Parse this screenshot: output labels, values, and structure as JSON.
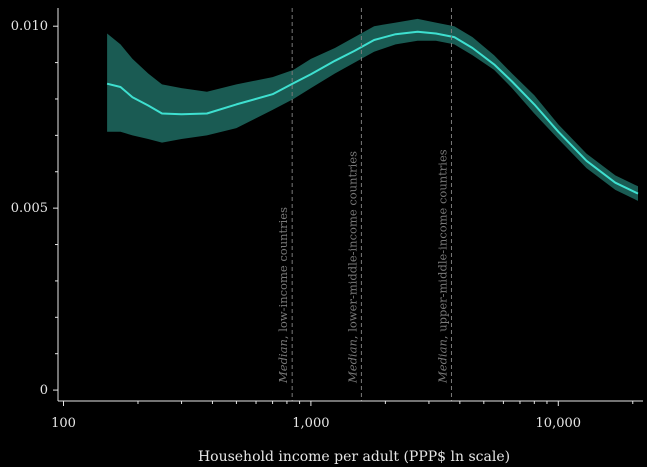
{
  "chart_data": {
    "type": "line",
    "xlabel": "Household income per adult (PPP$ ln scale)",
    "ylabel": "",
    "x_scale": "log",
    "xlim": [
      95,
      22000
    ],
    "ylim": [
      -0.0003,
      0.0105
    ],
    "xticks": [
      {
        "value": 100,
        "label": "100"
      },
      {
        "value": 1000,
        "label": "1,000"
      },
      {
        "value": 10000,
        "label": "10,000"
      }
    ],
    "yticks": [
      {
        "value": 0,
        "label": "0"
      },
      {
        "value": 0.005,
        "label": "0.005"
      },
      {
        "value": 0.01,
        "label": "0.010"
      }
    ],
    "grid": false,
    "colors": {
      "line": "#3ee0d0",
      "band": "#1f6b62",
      "reference": "#7a7a7a",
      "axis": "#e6e6e6",
      "background": "#000000"
    },
    "series": [
      {
        "x": [
          150,
          170,
          190,
          220,
          250,
          300,
          380,
          500,
          700,
          850,
          1000,
          1250,
          1500,
          1800,
          2200,
          2700,
          3200,
          3800,
          4500,
          5500,
          6500,
          8000,
          10000,
          13000,
          17000,
          21000
        ],
        "y": [
          0.00842,
          0.00833,
          0.00805,
          0.00782,
          0.0076,
          0.00758,
          0.0076,
          0.00785,
          0.00813,
          0.00843,
          0.00868,
          0.00905,
          0.00932,
          0.00962,
          0.00978,
          0.00985,
          0.0098,
          0.0097,
          0.0094,
          0.00895,
          0.00848,
          0.00785,
          0.0071,
          0.0063,
          0.0057,
          0.0054
        ],
        "lower": [
          0.0071,
          0.0071,
          0.007,
          0.0069,
          0.0068,
          0.0069,
          0.007,
          0.0072,
          0.0077,
          0.008,
          0.0083,
          0.0087,
          0.009,
          0.0093,
          0.0095,
          0.0096,
          0.0096,
          0.0095,
          0.0092,
          0.0088,
          0.0083,
          0.0076,
          0.0069,
          0.0061,
          0.0055,
          0.0052
        ],
        "upper": [
          0.0098,
          0.0095,
          0.0091,
          0.0087,
          0.0084,
          0.0083,
          0.0082,
          0.0084,
          0.0086,
          0.0088,
          0.0091,
          0.0094,
          0.0097,
          0.01,
          0.0101,
          0.0102,
          0.0101,
          0.01,
          0.0097,
          0.0092,
          0.0087,
          0.0081,
          0.0073,
          0.0065,
          0.0059,
          0.0056
        ]
      }
    ],
    "reference_lines": [
      {
        "x": 840,
        "italic": "Median",
        "text": ", low-income countries"
      },
      {
        "x": 1600,
        "italic": "Median",
        "text": ", lower-middle-income countries"
      },
      {
        "x": 3700,
        "italic": "Median",
        "text": ", upper-middle-income countries"
      }
    ]
  }
}
